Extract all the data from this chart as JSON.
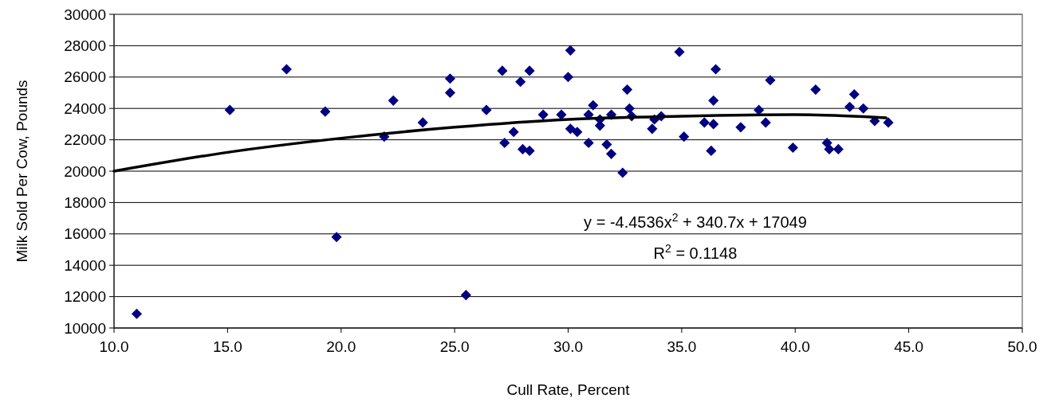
{
  "chart_data": {
    "type": "scatter",
    "xlabel": "Cull Rate, Percent",
    "ylabel": "Milk Sold Per Cow, Pounds",
    "xlim": [
      10,
      50
    ],
    "xticks": [
      {
        "value": 10,
        "label": "10.0"
      },
      {
        "value": 15,
        "label": "15.0"
      },
      {
        "value": 20,
        "label": "20.0"
      },
      {
        "value": 25,
        "label": "25.0"
      },
      {
        "value": 30,
        "label": "30.0"
      },
      {
        "value": 35,
        "label": "35.0"
      },
      {
        "value": 40,
        "label": "40.0"
      },
      {
        "value": 45,
        "label": "45.0"
      },
      {
        "value": 50,
        "label": "50.0"
      }
    ],
    "ylim": [
      10000,
      30000
    ],
    "yticks": [
      10000,
      12000,
      14000,
      16000,
      18000,
      20000,
      22000,
      24000,
      26000,
      28000,
      30000
    ],
    "grid": "y",
    "marker": "diamond",
    "series": [
      {
        "type": "scatter",
        "color": "#000080",
        "x": [
          11.0,
          15.1,
          17.6,
          19.3,
          19.8,
          21.9,
          22.3,
          23.6,
          24.8,
          24.8,
          25.5,
          26.4,
          27.1,
          27.2,
          27.6,
          27.9,
          28.0,
          28.3,
          28.3,
          28.9,
          29.7,
          30.0,
          30.1,
          30.1,
          30.4,
          30.9,
          30.9,
          31.1,
          31.4,
          31.4,
          31.7,
          31.9,
          31.9,
          32.4,
          32.6,
          32.7,
          32.8,
          33.7,
          33.8,
          34.1,
          34.9,
          35.1,
          36.0,
          36.3,
          36.4,
          36.4,
          36.5,
          37.6,
          38.4,
          38.7,
          38.9,
          39.9,
          40.9,
          41.4,
          41.5,
          41.9,
          42.4,
          42.6,
          43.0,
          43.5,
          44.1
        ],
        "values": [
          10900,
          23900,
          26500,
          23800,
          15800,
          22200,
          24500,
          23100,
          25900,
          25000,
          12100,
          23900,
          26400,
          21800,
          22500,
          25700,
          21400,
          26400,
          21300,
          23600,
          23600,
          26000,
          27700,
          22700,
          22500,
          21800,
          23600,
          24200,
          23300,
          22900,
          21700,
          21100,
          23600,
          19900,
          25200,
          24000,
          23500,
          22700,
          23300,
          23500,
          27600,
          22200,
          23100,
          21300,
          24500,
          23000,
          26500,
          22800,
          23900,
          23100,
          25800,
          21500,
          25200,
          21800,
          21400,
          21400,
          24100,
          24900,
          24000,
          23200,
          23100
        ]
      },
      {
        "type": "line",
        "color": "#000000",
        "marker": "none",
        "line_style": "solid",
        "x": [
          10,
          15,
          20,
          25,
          30,
          35,
          40,
          44
        ],
        "values": [
          20000,
          21200,
          22100,
          22800,
          23300,
          23500,
          23600,
          23400
        ]
      }
    ],
    "annotations": [
      "y = -4.4536x$^{2}$ + 340.7x + 17049",
      "R$^{2}$ = 0.1148"
    ]
  }
}
